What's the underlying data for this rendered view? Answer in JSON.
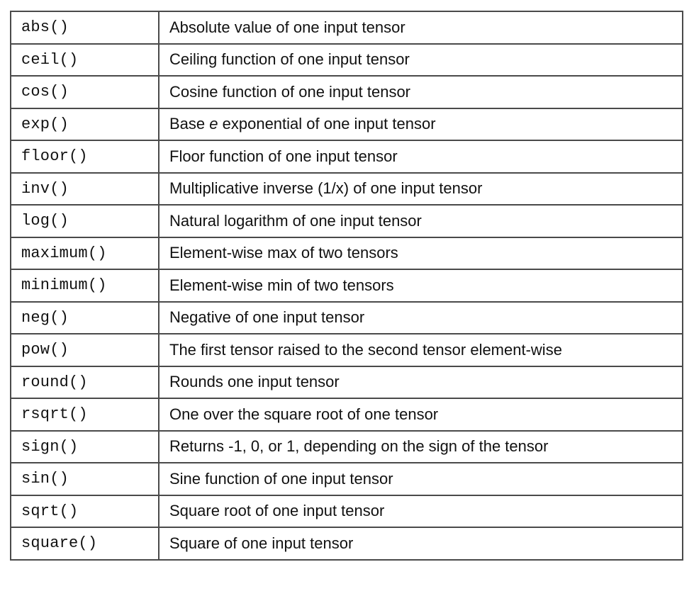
{
  "table": {
    "rows": [
      {
        "function": "abs()",
        "description": "Absolute value of one input tensor"
      },
      {
        "function": "ceil()",
        "description": "Ceiling function of one input tensor"
      },
      {
        "function": "cos()",
        "description": "Cosine function of one input tensor"
      },
      {
        "function": "exp()",
        "description": "Base e exponential of one input tensor"
      },
      {
        "function": "floor()",
        "description": "Floor function of one input tensor"
      },
      {
        "function": "inv()",
        "description": "Multiplicative inverse (1/x) of one input tensor"
      },
      {
        "function": "log()",
        "description": "Natural logarithm of one input tensor"
      },
      {
        "function": "maximum()",
        "description": "Element-wise max of two tensors"
      },
      {
        "function": "minimum()",
        "description": "Element-wise min of two tensors"
      },
      {
        "function": "neg()",
        "description": "Negative of one input tensor"
      },
      {
        "function": "pow()",
        "description": "The first tensor raised to the second tensor element-wise"
      },
      {
        "function": "round()",
        "description": "Rounds one input tensor"
      },
      {
        "function": "rsqrt()",
        "description": "One over the square root of one tensor"
      },
      {
        "function": "sign()",
        "description": "Returns -1, 0, or 1, depending on the sign of the tensor"
      },
      {
        "function": "sin()",
        "description": "Sine function of one input tensor"
      },
      {
        "function": "sqrt()",
        "description": "Square root of one input tensor"
      },
      {
        "function": "square()",
        "description": "Square of one input tensor"
      }
    ]
  }
}
